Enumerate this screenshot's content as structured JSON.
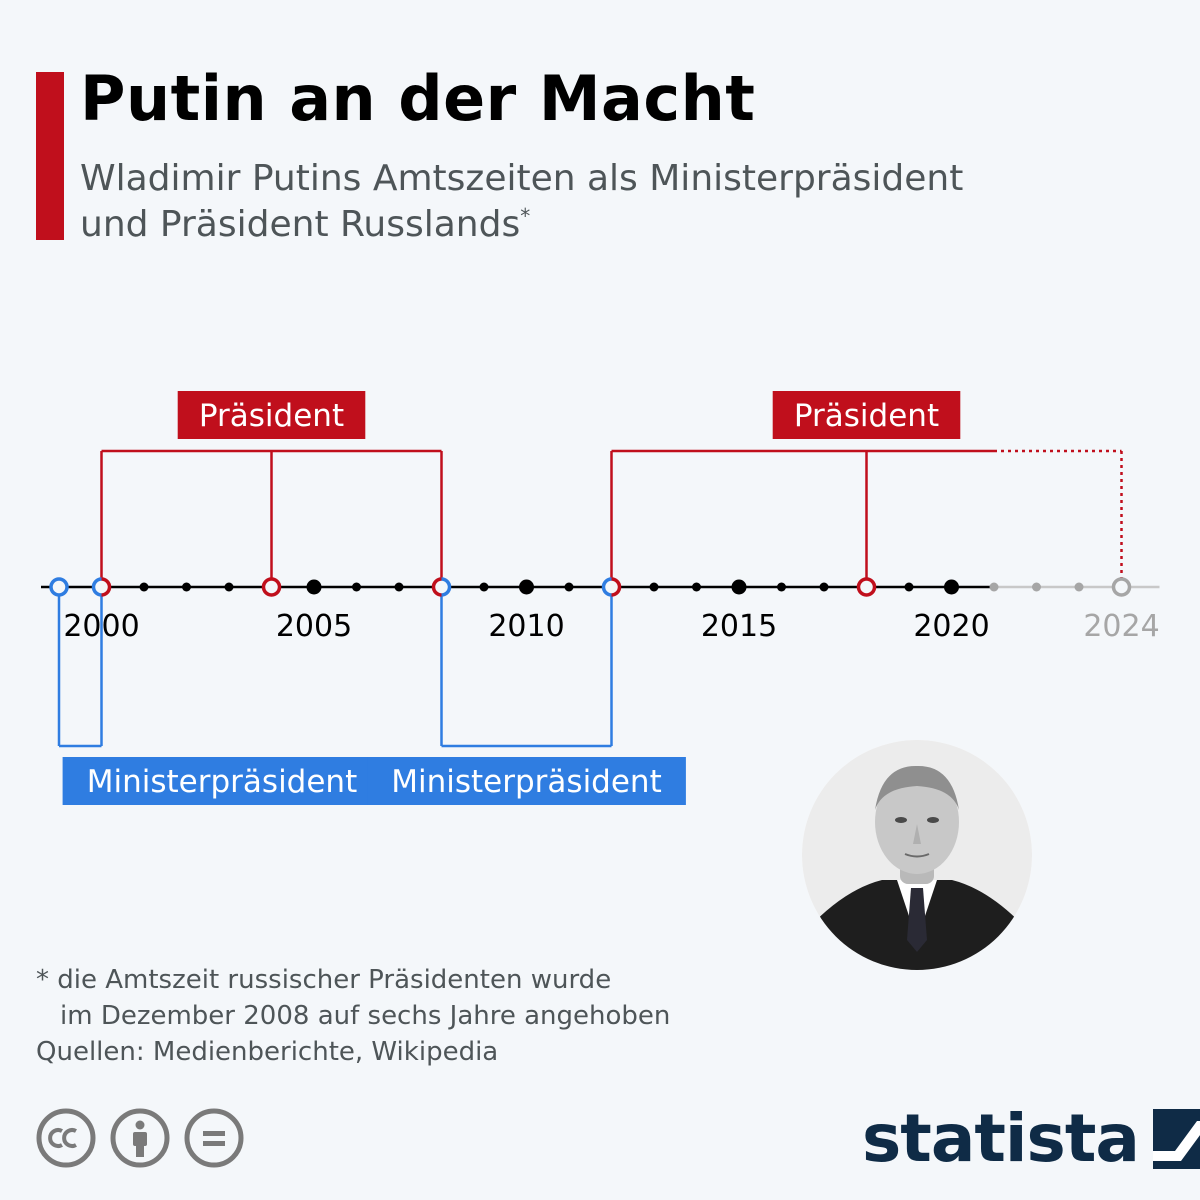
{
  "header": {
    "title": "Putin an der Macht",
    "subtitle_line1": "Wladimir Putins Amtszeiten als Ministerpräsident",
    "subtitle_line2": "und Präsident Russlands",
    "subtitle_marker": "*"
  },
  "timeline": {
    "year_labels": [
      {
        "year": 2000,
        "text": "2000",
        "projected": false
      },
      {
        "year": 2005,
        "text": "2005",
        "projected": false
      },
      {
        "year": 2010,
        "text": "2010",
        "projected": false
      },
      {
        "year": 2015,
        "text": "2015",
        "projected": false
      },
      {
        "year": 2020,
        "text": "2020",
        "projected": false
      },
      {
        "year": 2024,
        "text": "2024",
        "projected": true
      }
    ],
    "president_label": "Präsident",
    "prime_minister_label": "Ministerpräsident",
    "president_terms": [
      {
        "start": 2000,
        "end": 2008,
        "mid": 2004,
        "projected_until": null
      },
      {
        "start": 2012,
        "end": 2024,
        "mid": 2018,
        "projected_from": 2021
      }
    ],
    "prime_minister_terms": [
      {
        "start": 1999,
        "end": 2000
      },
      {
        "start": 2008,
        "end": 2012
      }
    ],
    "markers": [
      {
        "year": 1999,
        "kind": "pm"
      },
      {
        "year": 2000,
        "kind": "split-pm-pres"
      },
      {
        "year": 2004,
        "kind": "pres"
      },
      {
        "year": 2008,
        "kind": "split-pres-pm"
      },
      {
        "year": 2012,
        "kind": "split-pm-pres"
      },
      {
        "year": 2018,
        "kind": "pres"
      },
      {
        "year": 2024,
        "kind": "future"
      }
    ],
    "range": [
      1999,
      2024
    ],
    "projected_from": 2021
  },
  "colors": {
    "accent": "#c00f1c",
    "president": "#c00f1c",
    "prime_minister": "#2f7de1",
    "axis": "#000000",
    "projected": "#a6a6a6",
    "background": "#f4f7fa"
  },
  "footnote": {
    "line1": "* die Amtszeit russischer Präsidenten wurde",
    "line2": "im Dezember 2008 auf sechs Jahre angehoben",
    "sources": "Quellen: Medienberichte, Wikipedia"
  },
  "license_icons": [
    "creative-commons-icon",
    "attribution-icon",
    "no-derivatives-icon"
  ],
  "brand": {
    "name": "statista"
  }
}
